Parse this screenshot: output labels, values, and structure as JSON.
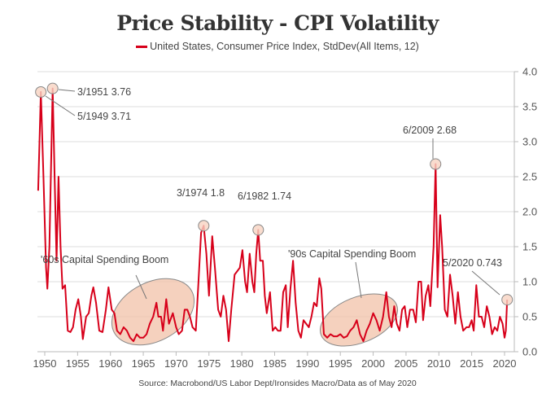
{
  "chart_data": {
    "type": "line",
    "title": "Price Stability - CPI Volatility",
    "legend": {
      "position": "top-center",
      "entries": [
        "United States, Consumer Price Index, StdDev(All Items, 12)"
      ]
    },
    "series_color": "#d7001a",
    "xlabel": "",
    "ylabel": "",
    "xlim": [
      1948.6,
      2021.5
    ],
    "ylim": [
      0,
      4
    ],
    "y_axis_side": "right",
    "grid": true,
    "x_ticks": [
      "1950",
      "1955",
      "1960",
      "1965",
      "1970",
      "1975",
      "1980",
      "1985",
      "1990",
      "1995",
      "2000",
      "2005",
      "2010",
      "2015",
      "2020"
    ],
    "y_ticks": [
      "0.0",
      "0.5",
      "1.0",
      "1.5",
      "2.0",
      "2.5",
      "3.0",
      "3.5",
      "4.0"
    ],
    "series": [
      {
        "name": "United States, Consumer Price Index, StdDev(All Items, 12)",
        "points": [
          [
            1949.0,
            2.3
          ],
          [
            1949.4,
            3.71
          ],
          [
            1949.8,
            2.5
          ],
          [
            1950.2,
            1.2
          ],
          [
            1950.4,
            0.9
          ],
          [
            1950.7,
            1.5
          ],
          [
            1951.2,
            3.76
          ],
          [
            1951.5,
            2.5
          ],
          [
            1951.8,
            1.3
          ],
          [
            1952.1,
            2.5
          ],
          [
            1952.4,
            1.5
          ],
          [
            1952.7,
            0.9
          ],
          [
            1953.1,
            0.95
          ],
          [
            1953.5,
            0.3
          ],
          [
            1953.9,
            0.28
          ],
          [
            1954.3,
            0.35
          ],
          [
            1954.7,
            0.6
          ],
          [
            1955.1,
            0.75
          ],
          [
            1955.5,
            0.5
          ],
          [
            1955.8,
            0.18
          ],
          [
            1956.3,
            0.5
          ],
          [
            1956.7,
            0.55
          ],
          [
            1957.1,
            0.8
          ],
          [
            1957.4,
            0.92
          ],
          [
            1957.8,
            0.7
          ],
          [
            1958.3,
            0.3
          ],
          [
            1958.8,
            0.28
          ],
          [
            1959.3,
            0.6
          ],
          [
            1959.7,
            0.92
          ],
          [
            1960.2,
            0.6
          ],
          [
            1960.6,
            0.55
          ],
          [
            1961.0,
            0.3
          ],
          [
            1961.5,
            0.25
          ],
          [
            1962.0,
            0.35
          ],
          [
            1962.5,
            0.3
          ],
          [
            1963.0,
            0.2
          ],
          [
            1963.5,
            0.15
          ],
          [
            1964.0,
            0.25
          ],
          [
            1964.5,
            0.2
          ],
          [
            1965.0,
            0.2
          ],
          [
            1965.5,
            0.25
          ],
          [
            1966.0,
            0.4
          ],
          [
            1966.5,
            0.5
          ],
          [
            1967.0,
            0.7
          ],
          [
            1967.3,
            0.5
          ],
          [
            1967.7,
            0.5
          ],
          [
            1968.0,
            0.3
          ],
          [
            1968.5,
            0.75
          ],
          [
            1968.9,
            0.4
          ],
          [
            1969.5,
            0.55
          ],
          [
            1970.0,
            0.35
          ],
          [
            1970.4,
            0.25
          ],
          [
            1970.9,
            0.3
          ],
          [
            1971.3,
            0.6
          ],
          [
            1971.7,
            0.6
          ],
          [
            1972.1,
            0.5
          ],
          [
            1972.5,
            0.35
          ],
          [
            1973.0,
            0.3
          ],
          [
            1973.4,
            1.0
          ],
          [
            1973.8,
            1.7
          ],
          [
            1974.2,
            1.8
          ],
          [
            1974.6,
            1.4
          ],
          [
            1975.0,
            0.8
          ],
          [
            1975.5,
            1.65
          ],
          [
            1975.9,
            1.2
          ],
          [
            1976.4,
            0.6
          ],
          [
            1976.8,
            0.5
          ],
          [
            1977.2,
            0.8
          ],
          [
            1977.6,
            0.6
          ],
          [
            1978.0,
            0.15
          ],
          [
            1978.4,
            0.6
          ],
          [
            1978.9,
            1.1
          ],
          [
            1979.3,
            1.15
          ],
          [
            1979.7,
            1.2
          ],
          [
            1980.1,
            1.45
          ],
          [
            1980.5,
            1.0
          ],
          [
            1980.8,
            0.85
          ],
          [
            1981.2,
            1.4
          ],
          [
            1981.6,
            1.0
          ],
          [
            1981.9,
            0.85
          ],
          [
            1982.2,
            1.4
          ],
          [
            1982.5,
            1.74
          ],
          [
            1982.8,
            1.3
          ],
          [
            1983.2,
            1.3
          ],
          [
            1983.5,
            0.8
          ],
          [
            1983.8,
            0.55
          ],
          [
            1984.3,
            0.85
          ],
          [
            1984.7,
            0.3
          ],
          [
            1985.1,
            0.35
          ],
          [
            1985.5,
            0.3
          ],
          [
            1985.9,
            0.3
          ],
          [
            1986.3,
            0.85
          ],
          [
            1986.7,
            0.95
          ],
          [
            1987.0,
            0.35
          ],
          [
            1987.4,
            0.9
          ],
          [
            1987.8,
            1.3
          ],
          [
            1988.2,
            0.7
          ],
          [
            1988.6,
            0.3
          ],
          [
            1989.0,
            0.2
          ],
          [
            1989.4,
            0.45
          ],
          [
            1989.8,
            0.4
          ],
          [
            1990.2,
            0.35
          ],
          [
            1990.6,
            0.5
          ],
          [
            1991.0,
            0.7
          ],
          [
            1991.4,
            0.65
          ],
          [
            1991.8,
            1.05
          ],
          [
            1992.1,
            0.9
          ],
          [
            1992.5,
            0.25
          ],
          [
            1993.0,
            0.2
          ],
          [
            1993.5,
            0.25
          ],
          [
            1994.0,
            0.22
          ],
          [
            1994.5,
            0.22
          ],
          [
            1995.0,
            0.25
          ],
          [
            1995.5,
            0.2
          ],
          [
            1996.0,
            0.22
          ],
          [
            1996.5,
            0.3
          ],
          [
            1997.0,
            0.35
          ],
          [
            1997.5,
            0.45
          ],
          [
            1998.0,
            0.25
          ],
          [
            1998.5,
            0.15
          ],
          [
            1999.0,
            0.3
          ],
          [
            1999.5,
            0.4
          ],
          [
            2000.0,
            0.55
          ],
          [
            2000.5,
            0.45
          ],
          [
            2001.0,
            0.3
          ],
          [
            2001.5,
            0.5
          ],
          [
            2002.0,
            0.85
          ],
          [
            2002.4,
            0.5
          ],
          [
            2002.8,
            0.35
          ],
          [
            2003.2,
            0.65
          ],
          [
            2003.6,
            0.4
          ],
          [
            2004.0,
            0.3
          ],
          [
            2004.4,
            0.6
          ],
          [
            2004.8,
            0.65
          ],
          [
            2005.2,
            0.35
          ],
          [
            2005.6,
            0.6
          ],
          [
            2006.1,
            0.6
          ],
          [
            2006.5,
            0.42
          ],
          [
            2006.9,
            1.0
          ],
          [
            2007.3,
            1.0
          ],
          [
            2007.6,
            0.45
          ],
          [
            2008.0,
            0.8
          ],
          [
            2008.4,
            0.95
          ],
          [
            2008.7,
            0.65
          ],
          [
            2009.2,
            1.5
          ],
          [
            2009.5,
            2.68
          ],
          [
            2009.8,
            0.92
          ],
          [
            2010.2,
            1.95
          ],
          [
            2010.5,
            1.5
          ],
          [
            2010.9,
            0.6
          ],
          [
            2011.3,
            0.5
          ],
          [
            2011.7,
            1.1
          ],
          [
            2012.1,
            0.8
          ],
          [
            2012.5,
            0.4
          ],
          [
            2012.9,
            0.85
          ],
          [
            2013.3,
            0.5
          ],
          [
            2013.7,
            0.3
          ],
          [
            2014.2,
            0.35
          ],
          [
            2014.6,
            0.35
          ],
          [
            2015.0,
            0.45
          ],
          [
            2015.3,
            0.3
          ],
          [
            2015.7,
            0.95
          ],
          [
            2016.1,
            0.5
          ],
          [
            2016.5,
            0.5
          ],
          [
            2016.9,
            0.35
          ],
          [
            2017.3,
            0.65
          ],
          [
            2017.7,
            0.5
          ],
          [
            2018.1,
            0.25
          ],
          [
            2018.5,
            0.35
          ],
          [
            2018.9,
            0.3
          ],
          [
            2019.3,
            0.5
          ],
          [
            2019.7,
            0.4
          ],
          [
            2020.0,
            0.2
          ],
          [
            2020.2,
            0.3
          ],
          [
            2020.4,
            0.743
          ]
        ]
      }
    ],
    "annotations": [
      {
        "text": "3/1951 3.76",
        "year": 1951.2,
        "value": 3.76
      },
      {
        "text": "5/1949 3.71",
        "year": 1949.4,
        "value": 3.71
      },
      {
        "text": "3/1974 1.8",
        "year": 1974.2,
        "value": 1.8
      },
      {
        "text": "6/1982 1.74",
        "year": 1982.5,
        "value": 1.74
      },
      {
        "text": "6/2009 2.68",
        "year": 2009.5,
        "value": 2.68
      },
      {
        "text": "5/2020 0.743",
        "year": 2020.4,
        "value": 0.743
      }
    ],
    "region_annotations": [
      {
        "text": "'60s Capital Spending Boom",
        "from": 1960.5,
        "to": 1973
      },
      {
        "text": "'90s Capital Spending Boom",
        "from": 1992.5,
        "to": 2004
      }
    ],
    "source": "Source: Macrobond/US Labor Dept/Ironsides Macro/Data as of May 2020"
  }
}
